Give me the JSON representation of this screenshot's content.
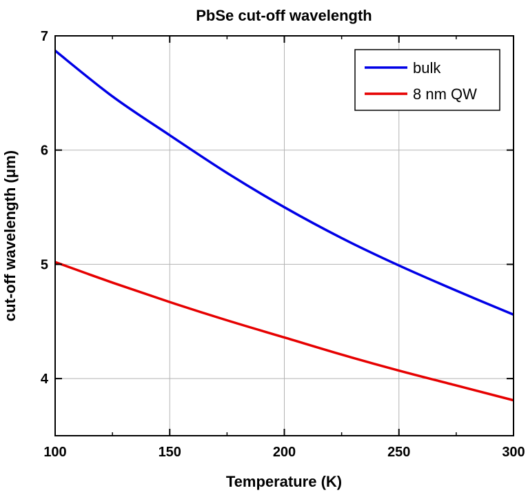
{
  "chart_data": {
    "type": "line",
    "title": "PbSe cut-off wavelength",
    "xlabel": "Temperature (K)",
    "ylabel": "cut-off wavelength (μm)",
    "xlim": [
      100,
      300
    ],
    "ylim": [
      3.5,
      7.0
    ],
    "x_ticks": [
      "100",
      "150",
      "200",
      "250",
      "300"
    ],
    "y_ticks": [
      "4",
      "5",
      "6",
      "7"
    ],
    "grid": true,
    "legend_position": "top-right",
    "x": [
      100,
      125,
      150,
      175,
      200,
      225,
      250,
      275,
      300
    ],
    "series": [
      {
        "name": "bulk",
        "color": "#0000e6",
        "values": [
          6.87,
          6.47,
          6.13,
          5.8,
          5.5,
          5.23,
          4.99,
          4.77,
          4.56
        ]
      },
      {
        "name": "8 nm QW",
        "color": "#e60000",
        "values": [
          5.02,
          4.84,
          4.67,
          4.51,
          4.36,
          4.21,
          4.07,
          3.94,
          3.81
        ]
      }
    ]
  }
}
